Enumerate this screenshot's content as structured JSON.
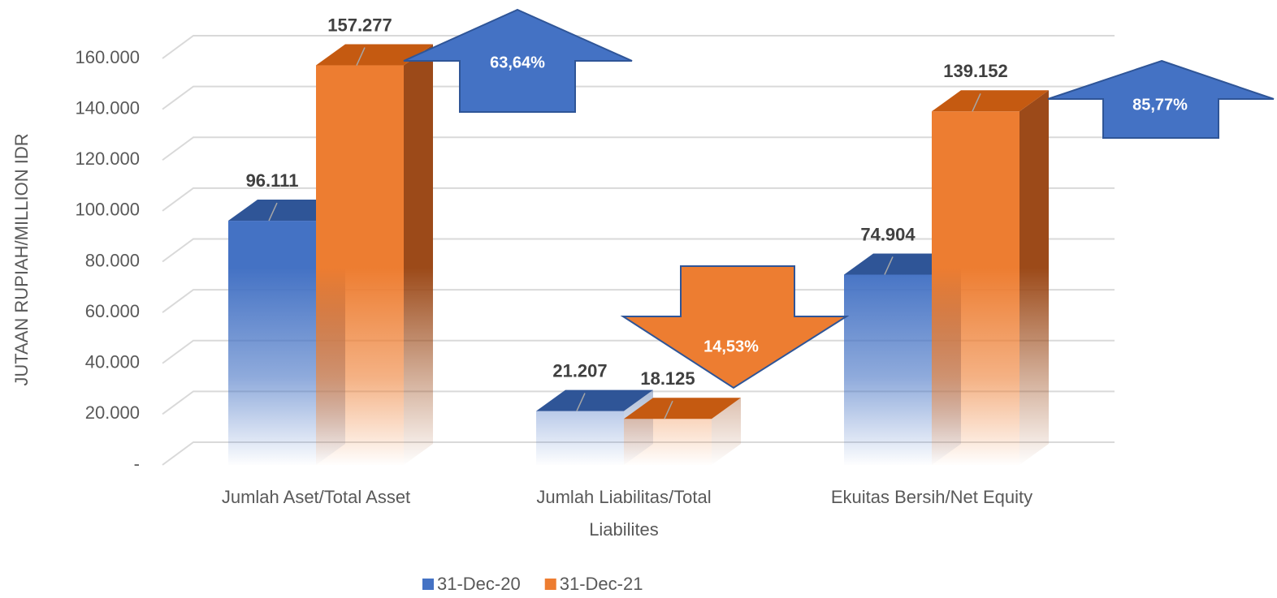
{
  "chart_data": {
    "type": "bar3d",
    "y_label": "JUTAAN RUPIAH/MILLION IDR",
    "categories": [
      "Jumlah Aset/Total Asset",
      "Jumlah Liabilitas/Total Liabilites",
      "Ekuitas Bersih/Net Equity"
    ],
    "series": [
      {
        "name": "31-Dec-20",
        "color": "#4472c4",
        "values": [
          96111,
          21207,
          74904
        ],
        "value_labels": [
          "96.111",
          "21.207",
          "74.904"
        ]
      },
      {
        "name": "31-Dec-21",
        "color": "#ed7d31",
        "values": [
          157277,
          18125,
          139152
        ],
        "value_labels": [
          "157.277",
          "18.125",
          "139.152"
        ]
      }
    ],
    "ylim": [
      0,
      160000
    ],
    "yticks": [
      {
        "value": 0,
        "label": "-"
      },
      {
        "value": 20000,
        "label": "20.000"
      },
      {
        "value": 40000,
        "label": "40.000"
      },
      {
        "value": 60000,
        "label": "60.000"
      },
      {
        "value": 80000,
        "label": "80.000"
      },
      {
        "value": 100000,
        "label": "100.000"
      },
      {
        "value": 120000,
        "label": "120.000"
      },
      {
        "value": 140000,
        "label": "140.000"
      },
      {
        "value": 160000,
        "label": "160.000"
      }
    ],
    "grid": true,
    "legend": "bottom",
    "annotations": [
      {
        "text": "63,64%"
      },
      {
        "text": "14,53%"
      },
      {
        "text": "85,77%"
      }
    ]
  }
}
